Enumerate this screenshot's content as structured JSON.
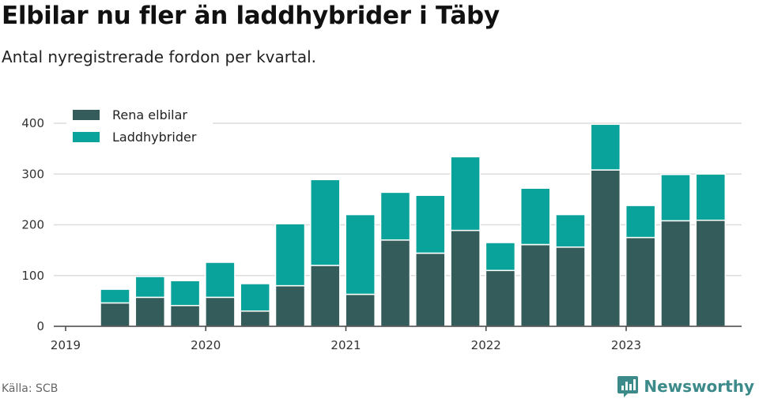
{
  "header": {
    "title": "Elbilar nu fler än laddhybrider i Täby",
    "subtitle": "Antal nyregistrerade fordon per kvartal."
  },
  "footer": {
    "source": "Källa: SCB",
    "brand": "Newsworthy"
  },
  "chart_data": {
    "type": "bar",
    "stacked": true,
    "title": "Elbilar nu fler än laddhybrider i Täby",
    "subtitle": "Antal nyregistrerade fordon per kvartal.",
    "xlabel": "",
    "ylabel": "",
    "categories": [
      "2019-Q2",
      "2019-Q3",
      "2019-Q4",
      "2020-Q1",
      "2020-Q2",
      "2020-Q3",
      "2020-Q4",
      "2021-Q1",
      "2021-Q2",
      "2021-Q3",
      "2021-Q4",
      "2022-Q1",
      "2022-Q2",
      "2022-Q3",
      "2022-Q4",
      "2023-Q1",
      "2023-Q2",
      "2023-Q3"
    ],
    "series": [
      {
        "name": "Rena elbilar",
        "color": "#335c5a",
        "values": [
          46,
          57,
          41,
          57,
          30,
          80,
          120,
          63,
          170,
          144,
          189,
          110,
          161,
          156,
          308,
          175,
          208,
          209
        ]
      },
      {
        "name": "Laddhybrider",
        "color": "#0aa39b",
        "values": [
          27,
          41,
          49,
          69,
          54,
          122,
          169,
          157,
          94,
          114,
          145,
          55,
          111,
          64,
          90,
          63,
          91,
          91
        ]
      }
    ],
    "xticks": [
      "2019",
      "2020",
      "2021",
      "2022",
      "2023"
    ],
    "yticks": [
      0,
      100,
      200,
      300,
      400
    ],
    "ylim": [
      0,
      400
    ],
    "grid": true,
    "legend": "top-left"
  }
}
